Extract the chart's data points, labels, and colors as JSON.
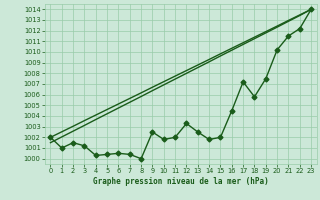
{
  "xlabel": "Graphe pression niveau de la mer (hPa)",
  "x_ticks": [
    0,
    1,
    2,
    3,
    4,
    5,
    6,
    7,
    8,
    9,
    10,
    11,
    12,
    13,
    14,
    15,
    16,
    17,
    18,
    19,
    20,
    21,
    22,
    23
  ],
  "ylim": [
    999.5,
    1014.5
  ],
  "yticks": [
    1000,
    1001,
    1002,
    1003,
    1004,
    1005,
    1006,
    1007,
    1008,
    1009,
    1010,
    1011,
    1012,
    1013,
    1014
  ],
  "bg_color": "#cce8d8",
  "grid_color": "#99ccaa",
  "line_color": "#1a5c1a",
  "line_actual": [
    1002,
    1001,
    1001.5,
    1001.2,
    1000.3,
    1000.4,
    1000.5,
    1000.4,
    1000.0,
    1002.5,
    1001.8,
    1002.0,
    1003.3,
    1002.5,
    1001.8,
    1002.0,
    1004.5,
    1007.2,
    1005.8,
    1007.5,
    1010.2,
    1011.5,
    1012.2,
    1014.0
  ],
  "line_trend1": [
    1002.0,
    1002.52,
    1003.04,
    1003.57,
    1004.09,
    1004.61,
    1005.13,
    1005.65,
    1006.17,
    1006.7,
    1007.22,
    1007.74,
    1008.26,
    1008.78,
    1009.3,
    1009.83,
    1010.35,
    1010.87,
    1011.39,
    1011.91,
    1012.43,
    1012.96,
    1013.48,
    1014.0
  ],
  "line_trend2": [
    1001.5,
    1002.04,
    1002.58,
    1003.12,
    1003.67,
    1004.21,
    1004.75,
    1005.29,
    1005.83,
    1006.38,
    1006.92,
    1007.46,
    1008.0,
    1008.54,
    1009.08,
    1009.63,
    1010.17,
    1010.71,
    1011.25,
    1011.79,
    1012.33,
    1012.88,
    1013.42,
    1014.0
  ],
  "lw_actual": 1.0,
  "lw_trend": 1.0,
  "marker_size": 2.5,
  "label_fontsize": 5.5,
  "tick_fontsize": 4.8
}
